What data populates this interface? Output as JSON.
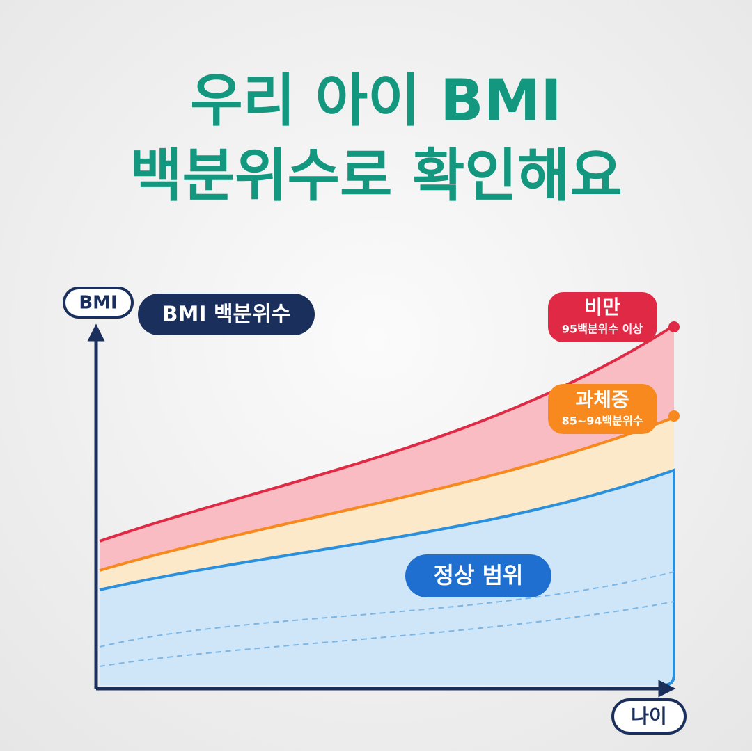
{
  "title": {
    "line1": "우리 아이 BMI",
    "line2": "백분위수로 확인해요"
  },
  "y_axis_label": "BMI",
  "chart_label": "BMI 백분위수",
  "x_axis_label": "나이",
  "zones": [
    {
      "name": "비만",
      "range": "95백분위수 이상"
    },
    {
      "name": "과체중",
      "range": "85~94백분위수"
    },
    {
      "name": "정상 범위"
    }
  ]
}
